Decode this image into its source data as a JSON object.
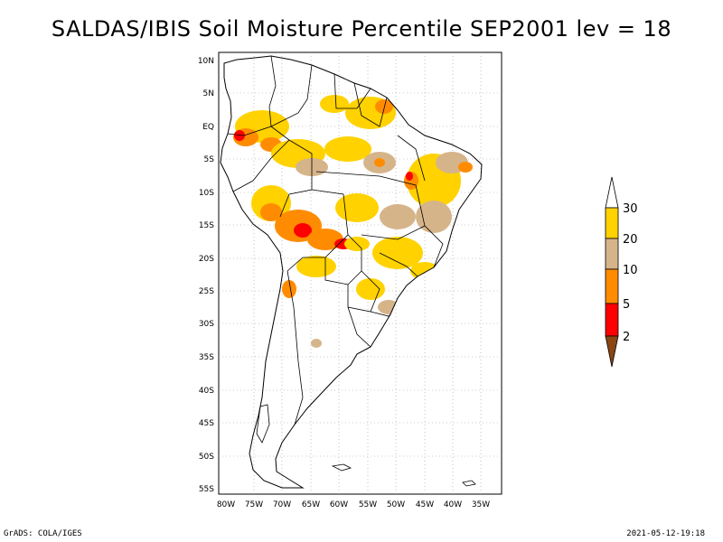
{
  "title": "SALDAS/IBIS Soil Moisture Percentile SEP2001 lev = 18",
  "axes": {
    "lat_ticks": [
      "10N",
      "5N",
      "EQ",
      "5S",
      "10S",
      "15S",
      "20S",
      "25S",
      "30S",
      "35S",
      "40S",
      "45S",
      "50S",
      "55S"
    ],
    "lon_ticks": [
      "80W",
      "75W",
      "70W",
      "65W",
      "60W",
      "55W",
      "50W",
      "45W",
      "40W",
      "35W"
    ]
  },
  "colorbar": {
    "levels": [
      "30",
      "20",
      "10",
      "5",
      "2"
    ],
    "colors": {
      "above_30": "#ffffff",
      "20_30": "#ffd200",
      "10_20": "#d6b48a",
      "5_10": "#ff8c00",
      "2_5": "#ff0000",
      "below_2": "#8b4513"
    }
  },
  "footer": {
    "left": "GrADS: COLA/IGES",
    "right": "2021-05-12-19:18"
  }
}
